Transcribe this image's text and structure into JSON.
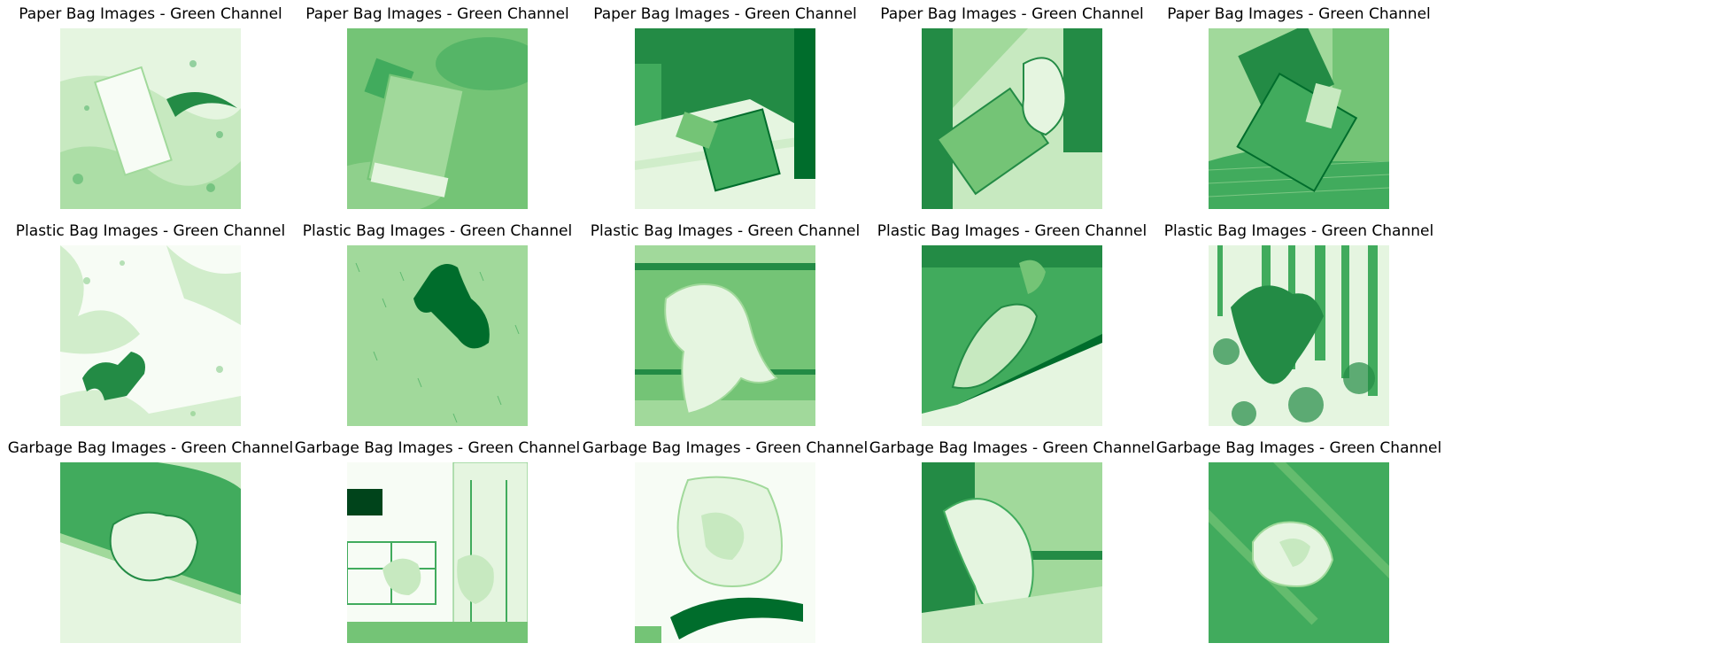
{
  "figure": {
    "colormap": "Greens",
    "rows": [
      {
        "category": "Paper",
        "panels": [
          {
            "title": "Paper Bag Images - Green Channel",
            "scene": "paper-bag-on-ground"
          },
          {
            "title": "Paper Bag Images - Green Channel",
            "scene": "paper-bag-blurred"
          },
          {
            "title": "Paper Bag Images - Green Channel",
            "scene": "paper-bag-by-door"
          },
          {
            "title": "Paper Bag Images - Green Channel",
            "scene": "paper-bag-crumpled-by-door"
          },
          {
            "title": "Paper Bag Images - Green Channel",
            "scene": "paper-bag-on-mat"
          }
        ]
      },
      {
        "category": "Plastic",
        "panels": [
          {
            "title": "Plastic Bag Images - Green Channel",
            "scene": "plastic-bag-on-ground"
          },
          {
            "title": "Plastic Bag Images - Green Channel",
            "scene": "plastic-bag-on-grass"
          },
          {
            "title": "Plastic Bag Images - Green Channel",
            "scene": "plastic-bag-by-step"
          },
          {
            "title": "Plastic Bag Images - Green Channel",
            "scene": "plastic-bag-by-wall"
          },
          {
            "title": "Plastic Bag Images - Green Channel",
            "scene": "plastic-bag-in-bushes"
          }
        ]
      },
      {
        "category": "Garbage",
        "panels": [
          {
            "title": "Garbage Bag Images - Green Channel",
            "scene": "garbage-bag-on-floor"
          },
          {
            "title": "Garbage Bag Images - Green Channel",
            "scene": "garbage-bag-in-room"
          },
          {
            "title": "Garbage Bag Images - Green Channel",
            "scene": "garbage-bag-light"
          },
          {
            "title": "Garbage Bag Images - Green Channel",
            "scene": "garbage-bag-by-wall"
          },
          {
            "title": "Garbage Bag Images - Green Channel",
            "scene": "garbage-bag-on-surface"
          }
        ]
      }
    ]
  }
}
